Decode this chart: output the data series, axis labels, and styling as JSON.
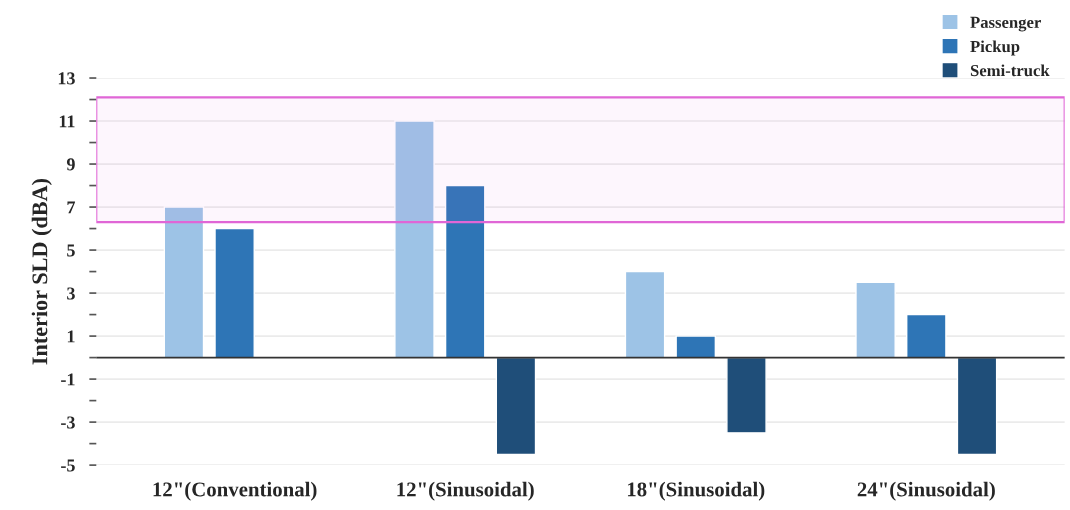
{
  "chart_data": {
    "type": "bar",
    "ylabel": "Interior SLD (dBA)",
    "categories": [
      "12\"(Conventional)",
      "12\"(Sinusoidal)",
      "18\"(Sinusoidal)",
      "24\"(Sinusoidal)"
    ],
    "series": [
      {
        "name": "Passenger",
        "color": "#9dc3e6",
        "values": [
          7,
          11,
          4,
          3.5
        ]
      },
      {
        "name": "Pickup",
        "color": "#2e75b6",
        "values": [
          6,
          8,
          1,
          2
        ]
      },
      {
        "name": "Semi-truck",
        "color": "#1f4e79",
        "values": [
          null,
          -4.5,
          -3.5,
          -4.5
        ]
      }
    ],
    "ylim": [
      -5,
      13
    ],
    "yticks": [
      -5,
      {
        "value": -4,
        "label": null
      },
      -3,
      {
        "value": -2,
        "label": null
      },
      -1,
      {
        "value": 0,
        "label": null
      },
      1,
      {
        "value": 2,
        "label": null
      },
      3,
      {
        "value": 4,
        "label": null
      },
      5,
      {
        "value": 6,
        "label": null
      },
      7,
      {
        "value": 8,
        "label": null
      },
      9,
      {
        "value": 10,
        "label": null
      },
      11,
      {
        "value": 12,
        "label": null
      },
      13
    ],
    "ref_lines": [
      {
        "axis": "y",
        "value": 0,
        "color": "#333333"
      }
    ],
    "bands": [
      {
        "axis": "y",
        "from": 6.3,
        "to": 12.1,
        "color": "#e066d6"
      }
    ],
    "grid": "y",
    "legend": "top right"
  }
}
